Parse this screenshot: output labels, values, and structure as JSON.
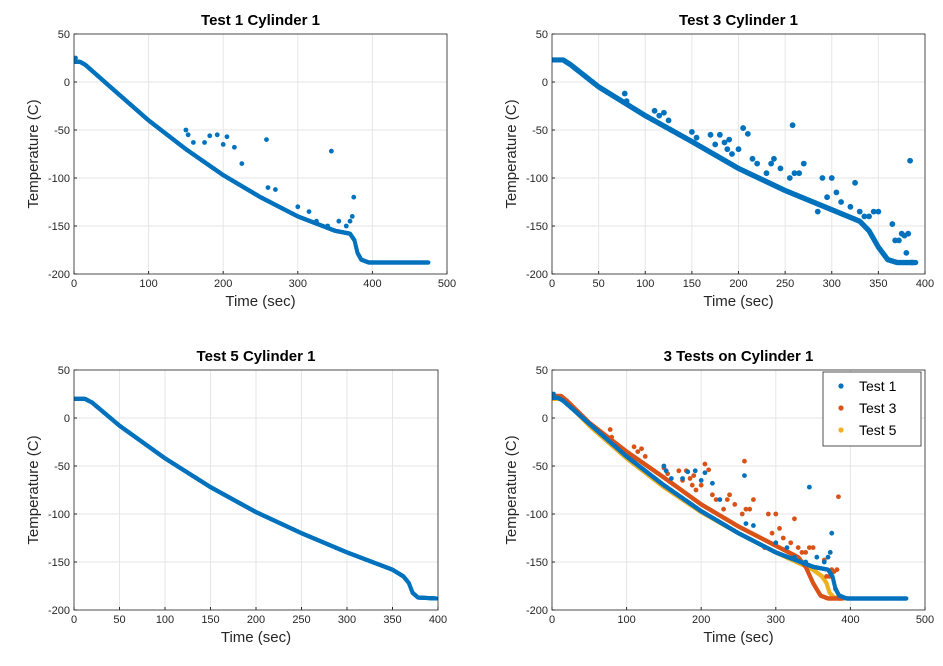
{
  "figure": {
    "layout": "2x2 grid"
  },
  "chart_data": [
    {
      "type": "scatter",
      "title": "Test 1 Cylinder 1",
      "xlabel": "Time (sec)",
      "ylabel": "Temperature (C)",
      "xlim": [
        0,
        500
      ],
      "ylim": [
        -200,
        50
      ],
      "xticks": [
        "0",
        "100",
        "200",
        "300",
        "400",
        "500"
      ],
      "yticks": [
        "50",
        "0",
        "-50",
        "-100",
        "-150",
        "-200"
      ],
      "grid": true,
      "series": [
        {
          "name": "Test 1",
          "color": "#0072BD",
          "curve": [
            [
              0,
              21
            ],
            [
              8,
              21
            ],
            [
              15,
              18
            ],
            [
              50,
              -6
            ],
            [
              100,
              -40
            ],
            [
              150,
              -70
            ],
            [
              200,
              -97
            ],
            [
              250,
              -120
            ],
            [
              300,
              -140
            ],
            [
              350,
              -155
            ],
            [
              370,
              -158
            ],
            [
              376,
              -165
            ],
            [
              380,
              -178
            ],
            [
              385,
              -185
            ],
            [
              395,
              -188
            ],
            [
              475,
              -188
            ]
          ],
          "outliers": [
            [
              2,
              25
            ],
            [
              150,
              -50
            ],
            [
              153,
              -55
            ],
            [
              160,
              -63
            ],
            [
              175,
              -63
            ],
            [
              182,
              -56
            ],
            [
              192,
              -55
            ],
            [
              200,
              -65
            ],
            [
              205,
              -57
            ],
            [
              215,
              -68
            ],
            [
              225,
              -85
            ],
            [
              258,
              -60
            ],
            [
              260,
              -110
            ],
            [
              270,
              -112
            ],
            [
              300,
              -130
            ],
            [
              315,
              -135
            ],
            [
              325,
              -145
            ],
            [
              340,
              -150
            ],
            [
              345,
              -72
            ],
            [
              355,
              -145
            ],
            [
              365,
              -150
            ],
            [
              370,
              -145
            ],
            [
              373,
              -140
            ],
            [
              375,
              -120
            ]
          ]
        }
      ]
    },
    {
      "type": "scatter",
      "title": "Test 3 Cylinder 1",
      "xlabel": "Time (sec)",
      "ylabel": "Temperature (C)",
      "xlim": [
        0,
        400
      ],
      "ylim": [
        -200,
        50
      ],
      "xticks": [
        "0",
        "50",
        "100",
        "150",
        "200",
        "250",
        "300",
        "350",
        "400"
      ],
      "yticks": [
        "50",
        "0",
        "-50",
        "-100",
        "-150",
        "-200"
      ],
      "grid": true,
      "series": [
        {
          "name": "Test 3",
          "color": "#0072BD",
          "curve": [
            [
              0,
              23
            ],
            [
              12,
              23
            ],
            [
              20,
              18
            ],
            [
              50,
              -5
            ],
            [
              100,
              -35
            ],
            [
              150,
              -62
            ],
            [
              200,
              -90
            ],
            [
              250,
              -113
            ],
            [
              300,
              -133
            ],
            [
              330,
              -145
            ],
            [
              340,
              -155
            ],
            [
              350,
              -172
            ],
            [
              360,
              -185
            ],
            [
              370,
              -188
            ],
            [
              390,
              -188
            ]
          ],
          "outliers": [
            [
              78,
              -12
            ],
            [
              80,
              -20
            ],
            [
              110,
              -30
            ],
            [
              115,
              -35
            ],
            [
              120,
              -32
            ],
            [
              125,
              -40
            ],
            [
              150,
              -52
            ],
            [
              155,
              -58
            ],
            [
              170,
              -55
            ],
            [
              175,
              -65
            ],
            [
              180,
              -55
            ],
            [
              185,
              -63
            ],
            [
              188,
              -70
            ],
            [
              190,
              -60
            ],
            [
              193,
              -75
            ],
            [
              200,
              -70
            ],
            [
              205,
              -48
            ],
            [
              210,
              -54
            ],
            [
              215,
              -80
            ],
            [
              220,
              -85
            ],
            [
              230,
              -95
            ],
            [
              235,
              -85
            ],
            [
              238,
              -80
            ],
            [
              245,
              -90
            ],
            [
              255,
              -100
            ],
            [
              258,
              -45
            ],
            [
              260,
              -95
            ],
            [
              265,
              -95
            ],
            [
              270,
              -85
            ],
            [
              285,
              -135
            ],
            [
              290,
              -100
            ],
            [
              295,
              -120
            ],
            [
              300,
              -100
            ],
            [
              305,
              -115
            ],
            [
              310,
              -125
            ],
            [
              320,
              -130
            ],
            [
              325,
              -105
            ],
            [
              330,
              -135
            ],
            [
              335,
              -140
            ],
            [
              340,
              -140
            ],
            [
              345,
              -135
            ],
            [
              350,
              -135
            ],
            [
              365,
              -148
            ],
            [
              368,
              -165
            ],
            [
              372,
              -165
            ],
            [
              375,
              -158
            ],
            [
              378,
              -160
            ],
            [
              380,
              -178
            ],
            [
              382,
              -158
            ],
            [
              384,
              -82
            ],
            [
              386,
              -188
            ]
          ]
        }
      ]
    },
    {
      "type": "scatter",
      "title": "Test 5 Cylinder 1",
      "xlabel": "Time (sec)",
      "ylabel": "Temperature (C)",
      "xlim": [
        0,
        400
      ],
      "ylim": [
        -200,
        50
      ],
      "xticks": [
        "0",
        "50",
        "100",
        "150",
        "200",
        "250",
        "300",
        "350",
        "400"
      ],
      "yticks": [
        "50",
        "0",
        "-50",
        "-100",
        "-150",
        "-200"
      ],
      "grid": true,
      "series": [
        {
          "name": "Test 5",
          "color": "#0072BD",
          "curve": [
            [
              0,
              20
            ],
            [
              12,
              20
            ],
            [
              20,
              16
            ],
            [
              50,
              -8
            ],
            [
              100,
              -42
            ],
            [
              150,
              -72
            ],
            [
              200,
              -98
            ],
            [
              250,
              -120
            ],
            [
              300,
              -140
            ],
            [
              350,
              -158
            ],
            [
              362,
              -165
            ],
            [
              368,
              -172
            ],
            [
              372,
              -182
            ],
            [
              378,
              -187
            ],
            [
              398,
              -188
            ]
          ],
          "outliers": []
        }
      ]
    },
    {
      "type": "scatter",
      "title": "3 Tests on Cylinder 1",
      "xlabel": "Time (sec)",
      "ylabel": "Temperature (C)",
      "xlim": [
        0,
        500
      ],
      "ylim": [
        -200,
        50
      ],
      "xticks": [
        "0",
        "100",
        "200",
        "300",
        "400",
        "500"
      ],
      "yticks": [
        "50",
        "0",
        "-50",
        "-100",
        "-150",
        "-200"
      ],
      "grid": true,
      "legend": {
        "position": "top-right",
        "entries": [
          "Test 1",
          "Test 3",
          "Test 5"
        ]
      },
      "series": [
        {
          "name": "Test 5",
          "color": "#EDB120",
          "curve": [
            [
              0,
              20
            ],
            [
              12,
              20
            ],
            [
              20,
              16
            ],
            [
              50,
              -8
            ],
            [
              100,
              -42
            ],
            [
              150,
              -72
            ],
            [
              200,
              -98
            ],
            [
              250,
              -120
            ],
            [
              300,
              -140
            ],
            [
              350,
              -158
            ],
            [
              362,
              -165
            ],
            [
              368,
              -172
            ],
            [
              372,
              -182
            ],
            [
              378,
              -187
            ],
            [
              398,
              -188
            ]
          ],
          "outliers": []
        },
        {
          "name": "Test 3",
          "color": "#D95319",
          "curve": [
            [
              0,
              23
            ],
            [
              12,
              23
            ],
            [
              20,
              18
            ],
            [
              50,
              -5
            ],
            [
              100,
              -35
            ],
            [
              150,
              -62
            ],
            [
              200,
              -90
            ],
            [
              250,
              -113
            ],
            [
              300,
              -133
            ],
            [
              330,
              -145
            ],
            [
              340,
              -155
            ],
            [
              350,
              -172
            ],
            [
              360,
              -185
            ],
            [
              370,
              -188
            ],
            [
              390,
              -188
            ]
          ],
          "outliers": [
            [
              78,
              -12
            ],
            [
              80,
              -20
            ],
            [
              110,
              -30
            ],
            [
              115,
              -35
            ],
            [
              120,
              -32
            ],
            [
              125,
              -40
            ],
            [
              150,
              -52
            ],
            [
              155,
              -58
            ],
            [
              170,
              -55
            ],
            [
              175,
              -65
            ],
            [
              180,
              -55
            ],
            [
              185,
              -63
            ],
            [
              188,
              -70
            ],
            [
              190,
              -60
            ],
            [
              193,
              -75
            ],
            [
              200,
              -70
            ],
            [
              205,
              -48
            ],
            [
              210,
              -54
            ],
            [
              215,
              -80
            ],
            [
              220,
              -85
            ],
            [
              230,
              -95
            ],
            [
              235,
              -85
            ],
            [
              238,
              -80
            ],
            [
              245,
              -90
            ],
            [
              255,
              -100
            ],
            [
              258,
              -45
            ],
            [
              260,
              -95
            ],
            [
              265,
              -95
            ],
            [
              270,
              -85
            ],
            [
              285,
              -135
            ],
            [
              290,
              -100
            ],
            [
              295,
              -120
            ],
            [
              300,
              -100
            ],
            [
              305,
              -115
            ],
            [
              310,
              -125
            ],
            [
              320,
              -130
            ],
            [
              325,
              -105
            ],
            [
              330,
              -135
            ],
            [
              335,
              -140
            ],
            [
              340,
              -140
            ],
            [
              345,
              -135
            ],
            [
              350,
              -135
            ],
            [
              365,
              -148
            ],
            [
              368,
              -165
            ],
            [
              372,
              -165
            ],
            [
              375,
              -158
            ],
            [
              378,
              -160
            ],
            [
              380,
              -178
            ],
            [
              382,
              -158
            ],
            [
              384,
              -82
            ],
            [
              386,
              -188
            ]
          ]
        },
        {
          "name": "Test 1",
          "color": "#0072BD",
          "curve": [
            [
              0,
              21
            ],
            [
              8,
              21
            ],
            [
              15,
              18
            ],
            [
              50,
              -6
            ],
            [
              100,
              -40
            ],
            [
              150,
              -70
            ],
            [
              200,
              -97
            ],
            [
              250,
              -120
            ],
            [
              300,
              -140
            ],
            [
              350,
              -155
            ],
            [
              370,
              -158
            ],
            [
              376,
              -165
            ],
            [
              380,
              -178
            ],
            [
              385,
              -185
            ],
            [
              395,
              -188
            ],
            [
              475,
              -188
            ]
          ],
          "outliers": [
            [
              2,
              25
            ],
            [
              150,
              -50
            ],
            [
              153,
              -55
            ],
            [
              160,
              -63
            ],
            [
              175,
              -63
            ],
            [
              182,
              -56
            ],
            [
              192,
              -55
            ],
            [
              200,
              -65
            ],
            [
              205,
              -57
            ],
            [
              215,
              -68
            ],
            [
              225,
              -85
            ],
            [
              258,
              -60
            ],
            [
              260,
              -110
            ],
            [
              270,
              -112
            ],
            [
              300,
              -130
            ],
            [
              315,
              -135
            ],
            [
              325,
              -145
            ],
            [
              340,
              -150
            ],
            [
              345,
              -72
            ],
            [
              355,
              -145
            ],
            [
              365,
              -150
            ],
            [
              370,
              -145
            ],
            [
              373,
              -140
            ],
            [
              375,
              -120
            ]
          ]
        }
      ]
    }
  ]
}
